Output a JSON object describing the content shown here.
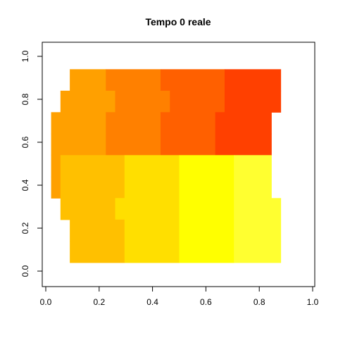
{
  "chart_data": {
    "type": "heatmap",
    "title": "Tempo 0 reale",
    "xlabel": "",
    "ylabel": "",
    "xlim": [
      0,
      1
    ],
    "ylim": [
      0,
      1
    ],
    "x_ticks": [
      "0.0",
      "0.2",
      "0.4",
      "0.6",
      "0.8",
      "1.0"
    ],
    "y_ticks": [
      "0.0",
      "0.2",
      "0.4",
      "0.6",
      "0.8",
      "1.0"
    ],
    "grid": false,
    "legend": "none",
    "colors": {
      "red": "#ff4000",
      "red_orange": "#ff6000",
      "orange": "#ff8000",
      "orange_light": "#ffa000",
      "amber": "#ffc000",
      "yellow_orange": "#ffdf00",
      "yellow": "#ffff00",
      "light_yellow": "#ffff30"
    },
    "cells": [
      {
        "x0": 0.09,
        "x1": 0.225,
        "y0": 0.84,
        "y1": 0.94,
        "color": "#ffa000"
      },
      {
        "x0": 0.225,
        "x1": 0.43,
        "y0": 0.84,
        "y1": 0.94,
        "color": "#ff8000"
      },
      {
        "x0": 0.43,
        "x1": 0.67,
        "y0": 0.84,
        "y1": 0.94,
        "color": "#ff6000"
      },
      {
        "x0": 0.67,
        "x1": 0.88,
        "y0": 0.84,
        "y1": 0.94,
        "color": "#ff4000"
      },
      {
        "x0": 0.055,
        "x1": 0.26,
        "y0": 0.74,
        "y1": 0.84,
        "color": "#ffa000"
      },
      {
        "x0": 0.26,
        "x1": 0.465,
        "y0": 0.74,
        "y1": 0.84,
        "color": "#ff8000"
      },
      {
        "x0": 0.465,
        "x1": 0.67,
        "y0": 0.74,
        "y1": 0.84,
        "color": "#ff6000"
      },
      {
        "x0": 0.67,
        "x1": 0.88,
        "y0": 0.74,
        "y1": 0.84,
        "color": "#ff4000"
      },
      {
        "x0": 0.02,
        "x1": 0.225,
        "y0": 0.64,
        "y1": 0.74,
        "color": "#ffa000"
      },
      {
        "x0": 0.225,
        "x1": 0.43,
        "y0": 0.64,
        "y1": 0.74,
        "color": "#ff8000"
      },
      {
        "x0": 0.43,
        "x1": 0.635,
        "y0": 0.64,
        "y1": 0.74,
        "color": "#ff6000"
      },
      {
        "x0": 0.635,
        "x1": 0.845,
        "y0": 0.64,
        "y1": 0.74,
        "color": "#ff4000"
      },
      {
        "x0": 0.02,
        "x1": 0.055,
        "y0": 0.54,
        "y1": 0.64,
        "color": "#ffa000"
      },
      {
        "x0": 0.055,
        "x1": 0.225,
        "y0": 0.54,
        "y1": 0.64,
        "color": "#ffa000"
      },
      {
        "x0": 0.225,
        "x1": 0.43,
        "y0": 0.54,
        "y1": 0.64,
        "color": "#ff8000"
      },
      {
        "x0": 0.43,
        "x1": 0.635,
        "y0": 0.54,
        "y1": 0.64,
        "color": "#ff6000"
      },
      {
        "x0": 0.635,
        "x1": 0.845,
        "y0": 0.54,
        "y1": 0.64,
        "color": "#ff4000"
      },
      {
        "x0": 0.02,
        "x1": 0.055,
        "y0": 0.44,
        "y1": 0.54,
        "color": "#ffa000"
      },
      {
        "x0": 0.055,
        "x1": 0.295,
        "y0": 0.44,
        "y1": 0.54,
        "color": "#ffc000"
      },
      {
        "x0": 0.295,
        "x1": 0.5,
        "y0": 0.44,
        "y1": 0.54,
        "color": "#ffdf00"
      },
      {
        "x0": 0.5,
        "x1": 0.705,
        "y0": 0.44,
        "y1": 0.54,
        "color": "#ffff00"
      },
      {
        "x0": 0.705,
        "x1": 0.845,
        "y0": 0.44,
        "y1": 0.54,
        "color": "#ffff30"
      },
      {
        "x0": 0.02,
        "x1": 0.055,
        "y0": 0.34,
        "y1": 0.44,
        "color": "#ffa000"
      },
      {
        "x0": 0.055,
        "x1": 0.295,
        "y0": 0.34,
        "y1": 0.44,
        "color": "#ffc000"
      },
      {
        "x0": 0.295,
        "x1": 0.5,
        "y0": 0.34,
        "y1": 0.44,
        "color": "#ffdf00"
      },
      {
        "x0": 0.5,
        "x1": 0.705,
        "y0": 0.34,
        "y1": 0.44,
        "color": "#ffff00"
      },
      {
        "x0": 0.705,
        "x1": 0.845,
        "y0": 0.34,
        "y1": 0.44,
        "color": "#ffff30"
      },
      {
        "x0": 0.055,
        "x1": 0.26,
        "y0": 0.24,
        "y1": 0.34,
        "color": "#ffc000"
      },
      {
        "x0": 0.26,
        "x1": 0.5,
        "y0": 0.24,
        "y1": 0.34,
        "color": "#ffdf00"
      },
      {
        "x0": 0.5,
        "x1": 0.705,
        "y0": 0.24,
        "y1": 0.34,
        "color": "#ffff00"
      },
      {
        "x0": 0.705,
        "x1": 0.88,
        "y0": 0.24,
        "y1": 0.34,
        "color": "#ffff30"
      },
      {
        "x0": 0.09,
        "x1": 0.295,
        "y0": 0.14,
        "y1": 0.24,
        "color": "#ffc000"
      },
      {
        "x0": 0.295,
        "x1": 0.5,
        "y0": 0.14,
        "y1": 0.24,
        "color": "#ffdf00"
      },
      {
        "x0": 0.5,
        "x1": 0.705,
        "y0": 0.14,
        "y1": 0.24,
        "color": "#ffff00"
      },
      {
        "x0": 0.705,
        "x1": 0.88,
        "y0": 0.14,
        "y1": 0.24,
        "color": "#ffff30"
      },
      {
        "x0": 0.09,
        "x1": 0.295,
        "y0": 0.04,
        "y1": 0.14,
        "color": "#ffc000"
      },
      {
        "x0": 0.295,
        "x1": 0.5,
        "y0": 0.04,
        "y1": 0.14,
        "color": "#ffdf00"
      },
      {
        "x0": 0.5,
        "x1": 0.705,
        "y0": 0.04,
        "y1": 0.14,
        "color": "#ffff00"
      },
      {
        "x0": 0.705,
        "x1": 0.88,
        "y0": 0.04,
        "y1": 0.14,
        "color": "#ffff30"
      }
    ]
  }
}
